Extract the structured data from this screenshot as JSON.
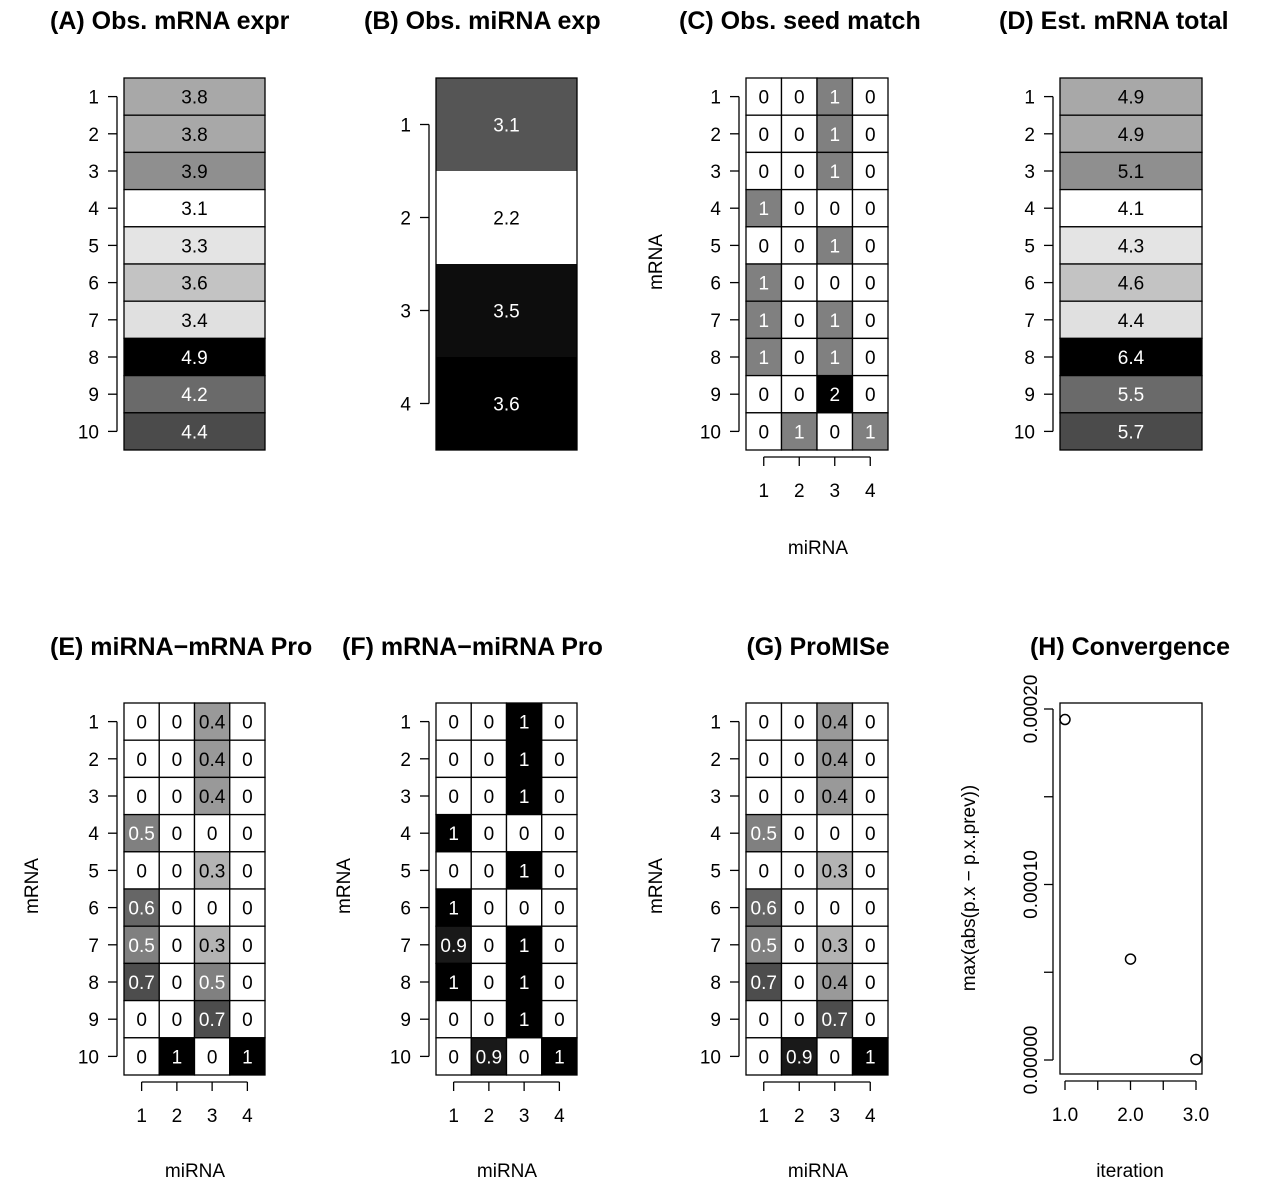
{
  "panels": [
    {
      "title": "(A) Obs. mRNA expr",
      "rows": [
        "1",
        "2",
        "3",
        "4",
        "5",
        "6",
        "7",
        "8",
        "9",
        "10"
      ],
      "cols": [],
      "values": [
        [
          3.8
        ],
        [
          3.8
        ],
        [
          3.9
        ],
        [
          3.1
        ],
        [
          3.3
        ],
        [
          3.6
        ],
        [
          3.4
        ],
        [
          4.9
        ],
        [
          4.2
        ],
        [
          4.4
        ]
      ],
      "labels": [
        [
          "3.8"
        ],
        [
          "3.8"
        ],
        [
          "3.9"
        ],
        [
          "3.1"
        ],
        [
          "3.3"
        ],
        [
          "3.6"
        ],
        [
          "3.4"
        ],
        [
          "4.9"
        ],
        [
          "4.2"
        ],
        [
          "4.4"
        ]
      ],
      "colors": [
        [
          "#a8a8a8"
        ],
        [
          "#a8a8a8"
        ],
        [
          "#8f8f8f"
        ],
        [
          "#ffffff"
        ],
        [
          "#e4e4e4"
        ],
        [
          "#c3c3c3"
        ],
        [
          "#e0e0e0"
        ],
        [
          "#000000"
        ],
        [
          "#6a6a6a"
        ],
        [
          "#4b4b4b"
        ]
      ],
      "xlabel": "",
      "ylabel": ""
    },
    {
      "title": "(B) Obs. miRNA exp",
      "rows": [
        "1",
        "2",
        "3",
        "4"
      ],
      "cols": [],
      "values": [
        [
          3.1
        ],
        [
          2.2
        ],
        [
          3.5
        ],
        [
          3.6
        ]
      ],
      "labels": [
        [
          "3.1"
        ],
        [
          "2.2"
        ],
        [
          "3.5"
        ],
        [
          "3.6"
        ]
      ],
      "colors": [
        [
          "#555555"
        ],
        [
          "#ffffff"
        ],
        [
          "#0d0d0d"
        ],
        [
          "#000000"
        ]
      ],
      "xlabel": "",
      "ylabel": ""
    },
    {
      "title": "(C) Obs. seed match",
      "rows": [
        "1",
        "2",
        "3",
        "4",
        "5",
        "6",
        "7",
        "8",
        "9",
        "10"
      ],
      "cols": [
        "1",
        "2",
        "3",
        "4"
      ],
      "values": [
        [
          0,
          0,
          1,
          0
        ],
        [
          0,
          0,
          1,
          0
        ],
        [
          0,
          0,
          1,
          0
        ],
        [
          1,
          0,
          0,
          0
        ],
        [
          0,
          0,
          1,
          0
        ],
        [
          1,
          0,
          0,
          0
        ],
        [
          1,
          0,
          1,
          0
        ],
        [
          1,
          0,
          1,
          0
        ],
        [
          0,
          0,
          2,
          0
        ],
        [
          0,
          1,
          0,
          1
        ]
      ],
      "labels": [
        [
          "0",
          "0",
          "1",
          "0"
        ],
        [
          "0",
          "0",
          "1",
          "0"
        ],
        [
          "0",
          "0",
          "1",
          "0"
        ],
        [
          "1",
          "0",
          "0",
          "0"
        ],
        [
          "0",
          "0",
          "1",
          "0"
        ],
        [
          "1",
          "0",
          "0",
          "0"
        ],
        [
          "1",
          "0",
          "1",
          "0"
        ],
        [
          "1",
          "0",
          "1",
          "0"
        ],
        [
          "0",
          "0",
          "2",
          "0"
        ],
        [
          "0",
          "1",
          "0",
          "1"
        ]
      ],
      "colors": [],
      "xlabel": "miRNA",
      "ylabel": "mRNA"
    },
    {
      "title": "(D) Est. mRNA total",
      "rows": [
        "1",
        "2",
        "3",
        "4",
        "5",
        "6",
        "7",
        "8",
        "9",
        "10"
      ],
      "cols": [],
      "values": [
        [
          4.9
        ],
        [
          4.9
        ],
        [
          5.1
        ],
        [
          4.1
        ],
        [
          4.3
        ],
        [
          4.6
        ],
        [
          4.4
        ],
        [
          6.4
        ],
        [
          5.5
        ],
        [
          5.7
        ]
      ],
      "labels": [
        [
          "4.9"
        ],
        [
          "4.9"
        ],
        [
          "5.1"
        ],
        [
          "4.1"
        ],
        [
          "4.3"
        ],
        [
          "4.6"
        ],
        [
          "4.4"
        ],
        [
          "6.4"
        ],
        [
          "5.5"
        ],
        [
          "5.7"
        ]
      ],
      "colors": [
        [
          "#a8a8a8"
        ],
        [
          "#a8a8a8"
        ],
        [
          "#8f8f8f"
        ],
        [
          "#ffffff"
        ],
        [
          "#e4e4e4"
        ],
        [
          "#c3c3c3"
        ],
        [
          "#e0e0e0"
        ],
        [
          "#000000"
        ],
        [
          "#6a6a6a"
        ],
        [
          "#4b4b4b"
        ]
      ],
      "xlabel": "",
      "ylabel": ""
    },
    {
      "title": "(E) miRNA−mRNA Pro",
      "rows": [
        "1",
        "2",
        "3",
        "4",
        "5",
        "6",
        "7",
        "8",
        "9",
        "10"
      ],
      "cols": [
        "1",
        "2",
        "3",
        "4"
      ],
      "values": [
        [
          0,
          0,
          0.4,
          0
        ],
        [
          0,
          0,
          0.4,
          0
        ],
        [
          0,
          0,
          0.4,
          0
        ],
        [
          0.5,
          0,
          0,
          0
        ],
        [
          0,
          0,
          0.3,
          0
        ],
        [
          0.6,
          0,
          0,
          0
        ],
        [
          0.5,
          0,
          0.3,
          0
        ],
        [
          0.7,
          0,
          0.5,
          0
        ],
        [
          0,
          0,
          0.7,
          0
        ],
        [
          0,
          1,
          0,
          1
        ]
      ],
      "labels": [
        [
          "0",
          "0",
          "0.4",
          "0"
        ],
        [
          "0",
          "0",
          "0.4",
          "0"
        ],
        [
          "0",
          "0",
          "0.4",
          "0"
        ],
        [
          "0.5",
          "0",
          "0",
          "0"
        ],
        [
          "0",
          "0",
          "0.3",
          "0"
        ],
        [
          "0.6",
          "0",
          "0",
          "0"
        ],
        [
          "0.5",
          "0",
          "0.3",
          "0"
        ],
        [
          "0.7",
          "0",
          "0.5",
          "0"
        ],
        [
          "0",
          "0",
          "0.7",
          "0"
        ],
        [
          "0",
          "1",
          "0",
          "1"
        ]
      ],
      "colors": [],
      "xlabel": "miRNA",
      "ylabel": "mRNA"
    },
    {
      "title": "(F) mRNA−miRNA Pro",
      "rows": [
        "1",
        "2",
        "3",
        "4",
        "5",
        "6",
        "7",
        "8",
        "9",
        "10"
      ],
      "cols": [
        "1",
        "2",
        "3",
        "4"
      ],
      "values": [
        [
          0,
          0,
          1,
          0
        ],
        [
          0,
          0,
          1,
          0
        ],
        [
          0,
          0,
          1,
          0
        ],
        [
          1,
          0,
          0,
          0
        ],
        [
          0,
          0,
          1,
          0
        ],
        [
          1,
          0,
          0,
          0
        ],
        [
          0.9,
          0,
          1,
          0
        ],
        [
          1,
          0,
          1,
          0
        ],
        [
          0,
          0,
          1,
          0
        ],
        [
          0,
          0.9,
          0,
          1
        ]
      ],
      "labels": [
        [
          "0",
          "0",
          "1",
          "0"
        ],
        [
          "0",
          "0",
          "1",
          "0"
        ],
        [
          "0",
          "0",
          "1",
          "0"
        ],
        [
          "1",
          "0",
          "0",
          "0"
        ],
        [
          "0",
          "0",
          "1",
          "0"
        ],
        [
          "1",
          "0",
          "0",
          "0"
        ],
        [
          "0.9",
          "0",
          "1",
          "0"
        ],
        [
          "1",
          "0",
          "1",
          "0"
        ],
        [
          "0",
          "0",
          "1",
          "0"
        ],
        [
          "0",
          "0.9",
          "0",
          "1"
        ]
      ],
      "colors": [],
      "xlabel": "miRNA",
      "ylabel": "mRNA"
    },
    {
      "title": "(G) ProMISe",
      "rows": [
        "1",
        "2",
        "3",
        "4",
        "5",
        "6",
        "7",
        "8",
        "9",
        "10"
      ],
      "cols": [
        "1",
        "2",
        "3",
        "4"
      ],
      "values": [
        [
          0,
          0,
          0.4,
          0
        ],
        [
          0,
          0,
          0.4,
          0
        ],
        [
          0,
          0,
          0.4,
          0
        ],
        [
          0.5,
          0,
          0,
          0
        ],
        [
          0,
          0,
          0.3,
          0
        ],
        [
          0.6,
          0,
          0,
          0
        ],
        [
          0.5,
          0,
          0.3,
          0
        ],
        [
          0.7,
          0,
          0.4,
          0
        ],
        [
          0,
          0,
          0.7,
          0
        ],
        [
          0,
          0.9,
          0,
          1
        ]
      ],
      "labels": [
        [
          "0",
          "0",
          "0.4",
          "0"
        ],
        [
          "0",
          "0",
          "0.4",
          "0"
        ],
        [
          "0",
          "0",
          "0.4",
          "0"
        ],
        [
          "0.5",
          "0",
          "0",
          "0"
        ],
        [
          "0",
          "0",
          "0.3",
          "0"
        ],
        [
          "0.6",
          "0",
          "0",
          "0"
        ],
        [
          "0.5",
          "0",
          "0.3",
          "0"
        ],
        [
          "0.7",
          "0",
          "0.4",
          "0"
        ],
        [
          "0",
          "0",
          "0.7",
          "0"
        ],
        [
          "0",
          "0.9",
          "0",
          "1"
        ]
      ],
      "colors": [],
      "xlabel": "miRNA",
      "ylabel": "mRNA"
    }
  ],
  "chart_data": [
    {
      "type": "heatmap",
      "title": "(A) Obs. mRNA expr",
      "rows": [
        "1",
        "2",
        "3",
        "4",
        "5",
        "6",
        "7",
        "8",
        "9",
        "10"
      ],
      "values": [
        3.8,
        3.8,
        3.9,
        3.1,
        3.3,
        3.6,
        3.4,
        4.9,
        4.2,
        4.4
      ]
    },
    {
      "type": "heatmap",
      "title": "(B) Obs. miRNA exp",
      "rows": [
        "1",
        "2",
        "3",
        "4"
      ],
      "values": [
        3.1,
        2.2,
        3.5,
        3.6
      ]
    },
    {
      "type": "heatmap",
      "title": "(C) Obs. seed match",
      "xlabel": "miRNA",
      "ylabel": "mRNA",
      "rows": [
        "1",
        "2",
        "3",
        "4",
        "5",
        "6",
        "7",
        "8",
        "9",
        "10"
      ],
      "cols": [
        "1",
        "2",
        "3",
        "4"
      ],
      "values": [
        [
          0,
          0,
          1,
          0
        ],
        [
          0,
          0,
          1,
          0
        ],
        [
          0,
          0,
          1,
          0
        ],
        [
          1,
          0,
          0,
          0
        ],
        [
          0,
          0,
          1,
          0
        ],
        [
          1,
          0,
          0,
          0
        ],
        [
          1,
          0,
          1,
          0
        ],
        [
          1,
          0,
          1,
          0
        ],
        [
          0,
          0,
          2,
          0
        ],
        [
          0,
          1,
          0,
          1
        ]
      ]
    },
    {
      "type": "heatmap",
      "title": "(D) Est. mRNA total",
      "rows": [
        "1",
        "2",
        "3",
        "4",
        "5",
        "6",
        "7",
        "8",
        "9",
        "10"
      ],
      "values": [
        4.9,
        4.9,
        5.1,
        4.1,
        4.3,
        4.6,
        4.4,
        6.4,
        5.5,
        5.7
      ]
    },
    {
      "type": "heatmap",
      "title": "(E) miRNA−mRNA Pro",
      "xlabel": "miRNA",
      "ylabel": "mRNA",
      "rows": [
        "1",
        "2",
        "3",
        "4",
        "5",
        "6",
        "7",
        "8",
        "9",
        "10"
      ],
      "cols": [
        "1",
        "2",
        "3",
        "4"
      ],
      "values": [
        [
          0,
          0,
          0.4,
          0
        ],
        [
          0,
          0,
          0.4,
          0
        ],
        [
          0,
          0,
          0.4,
          0
        ],
        [
          0.5,
          0,
          0,
          0
        ],
        [
          0,
          0,
          0.3,
          0
        ],
        [
          0.6,
          0,
          0,
          0
        ],
        [
          0.5,
          0,
          0.3,
          0
        ],
        [
          0.7,
          0,
          0.5,
          0
        ],
        [
          0,
          0,
          0.7,
          0
        ],
        [
          0,
          1,
          0,
          1
        ]
      ]
    },
    {
      "type": "heatmap",
      "title": "(F) mRNA−miRNA Pro",
      "xlabel": "miRNA",
      "ylabel": "mRNA",
      "rows": [
        "1",
        "2",
        "3",
        "4",
        "5",
        "6",
        "7",
        "8",
        "9",
        "10"
      ],
      "cols": [
        "1",
        "2",
        "3",
        "4"
      ],
      "values": [
        [
          0,
          0,
          1,
          0
        ],
        [
          0,
          0,
          1,
          0
        ],
        [
          0,
          0,
          1,
          0
        ],
        [
          1,
          0,
          0,
          0
        ],
        [
          0,
          0,
          1,
          0
        ],
        [
          1,
          0,
          0,
          0
        ],
        [
          0.9,
          0,
          1,
          0
        ],
        [
          1,
          0,
          1,
          0
        ],
        [
          0,
          0,
          1,
          0
        ],
        [
          0,
          0.9,
          0,
          1
        ]
      ]
    },
    {
      "type": "heatmap",
      "title": "(G) ProMISe",
      "xlabel": "miRNA",
      "ylabel": "mRNA",
      "rows": [
        "1",
        "2",
        "3",
        "4",
        "5",
        "6",
        "7",
        "8",
        "9",
        "10"
      ],
      "cols": [
        "1",
        "2",
        "3",
        "4"
      ],
      "values": [
        [
          0,
          0,
          0.4,
          0
        ],
        [
          0,
          0,
          0.4,
          0
        ],
        [
          0,
          0,
          0.4,
          0
        ],
        [
          0.5,
          0,
          0,
          0
        ],
        [
          0,
          0,
          0.3,
          0
        ],
        [
          0.6,
          0,
          0,
          0
        ],
        [
          0.5,
          0,
          0.3,
          0
        ],
        [
          0.7,
          0,
          0.4,
          0
        ],
        [
          0,
          0,
          0.7,
          0
        ],
        [
          0,
          0.9,
          0,
          1
        ]
      ]
    },
    {
      "type": "scatter",
      "title": "(H) Convergence",
      "xlabel": "iteration",
      "ylabel": "max(abs(p.x − p.x.prev))",
      "x": [
        1,
        2,
        3
      ],
      "y": [
        0.000194,
        5.75e-05,
        3e-07
      ],
      "xlim": [
        1,
        3
      ],
      "ylim": [
        0,
        0.0002
      ],
      "xticks": [
        "1.0",
        "2.0",
        "3.0"
      ],
      "yticks": [
        "0.00000",
        "0.00010",
        "0.00020"
      ]
    }
  ]
}
